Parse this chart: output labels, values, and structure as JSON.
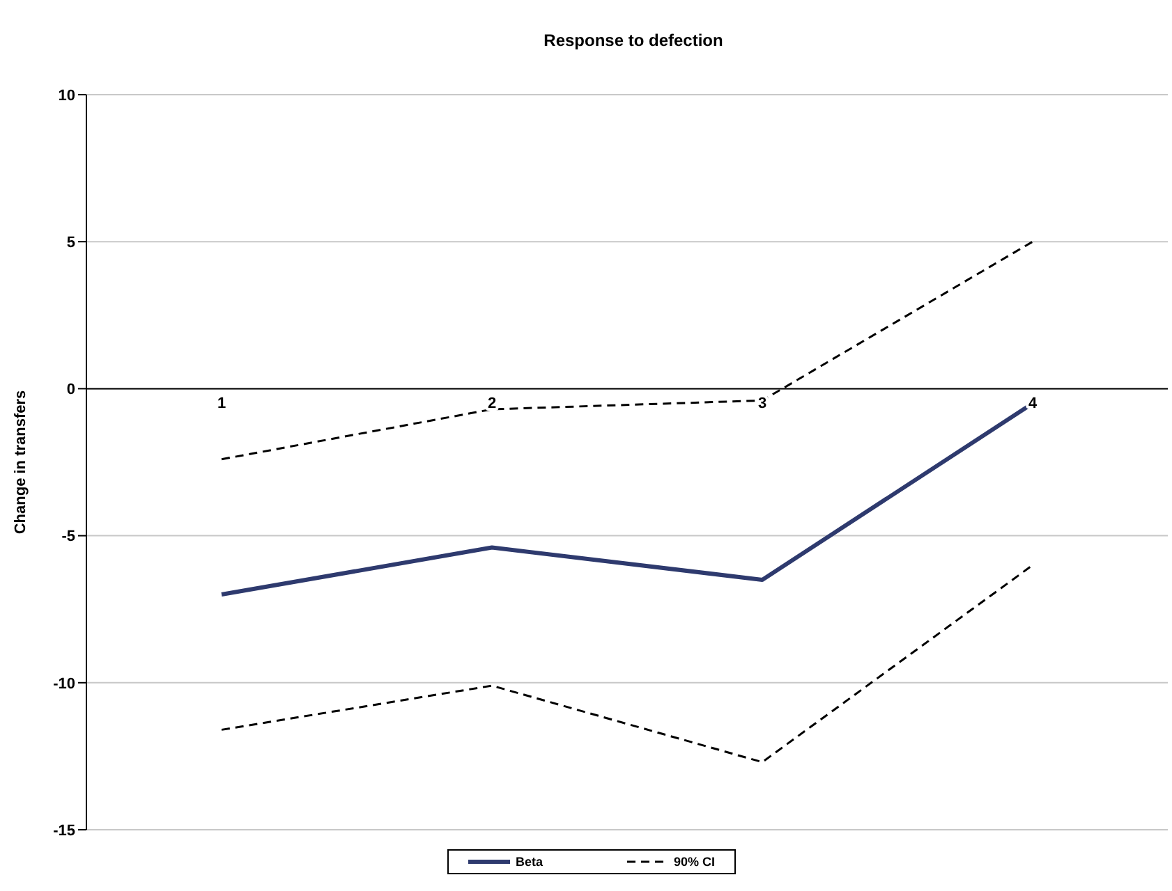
{
  "chart_data": {
    "type": "line",
    "title": "Response to defection",
    "ylabel": "Change in transfers",
    "categories": [
      "1",
      "2",
      "3",
      "4"
    ],
    "series": [
      {
        "name": "Beta",
        "color": "#2e3a6e",
        "values": [
          -7.0,
          -5.4,
          -6.5,
          -0.5
        ],
        "line_style": "solid"
      },
      {
        "name": "90% CI",
        "color": "#000000",
        "values": [
          -2.4,
          -0.7,
          -0.4,
          5.0
        ],
        "line_style": "dashed"
      },
      {
        "color": "#000000",
        "values": [
          -11.6,
          -10.1,
          -12.7,
          -6.0
        ],
        "line_style": "dashed"
      }
    ],
    "ylim": [
      -15,
      10
    ],
    "yticks": [
      -15,
      -10,
      -5,
      0,
      5,
      10
    ],
    "grid": "y",
    "legend": "bottom",
    "marker": "none"
  }
}
